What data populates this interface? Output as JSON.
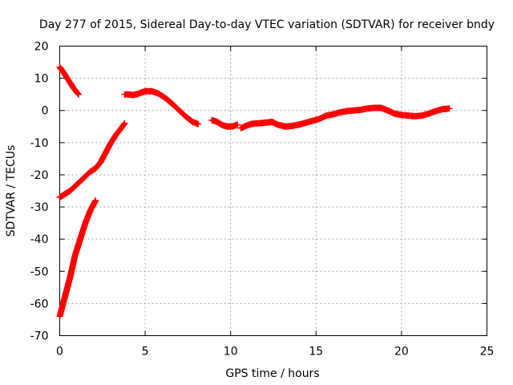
{
  "chart_data": {
    "type": "scatter",
    "title": "Day 277 of 2015, Sidereal Day-to-day VTEC variation (SDTVAR) for receiver bndy",
    "xlabel": "GPS time / hours",
    "ylabel": "SDTVAR / TECUs",
    "xlim": [
      0,
      25
    ],
    "ylim": [
      -70,
      20
    ],
    "xticks": [
      0,
      5,
      10,
      15,
      20,
      25
    ],
    "yticks": [
      -70,
      -60,
      -50,
      -40,
      -30,
      -20,
      -10,
      0,
      10,
      20
    ],
    "grid": true,
    "marker": "+",
    "color": "#ff0000",
    "series": [
      {
        "name": "segment-1",
        "points": [
          [
            0.0,
            13.5
          ],
          [
            0.2,
            12.0
          ],
          [
            0.5,
            9.5
          ],
          [
            0.8,
            7.0
          ],
          [
            1.1,
            5.0
          ]
        ]
      },
      {
        "name": "segment-2",
        "points": [
          [
            0.0,
            -27.0
          ],
          [
            0.3,
            -26.0
          ],
          [
            0.6,
            -25.0
          ],
          [
            0.9,
            -23.5
          ],
          [
            1.2,
            -22.0
          ],
          [
            1.5,
            -20.5
          ],
          [
            1.8,
            -19.0
          ],
          [
            2.1,
            -18.0
          ],
          [
            2.4,
            -16.0
          ],
          [
            2.7,
            -13.0
          ],
          [
            3.0,
            -10.0
          ],
          [
            3.3,
            -7.5
          ],
          [
            3.6,
            -5.5
          ],
          [
            3.8,
            -4.0
          ]
        ]
      },
      {
        "name": "segment-3",
        "points": [
          [
            0.0,
            -64.0
          ],
          [
            0.3,
            -58.0
          ],
          [
            0.6,
            -52.0
          ],
          [
            0.9,
            -45.0
          ],
          [
            1.2,
            -40.0
          ],
          [
            1.5,
            -35.0
          ],
          [
            1.8,
            -31.0
          ],
          [
            2.1,
            -28.0
          ]
        ]
      },
      {
        "name": "segment-4",
        "points": [
          [
            3.8,
            5.0
          ],
          [
            4.0,
            5.0
          ],
          [
            4.3,
            4.8
          ],
          [
            4.6,
            5.2
          ],
          [
            5.0,
            6.0
          ],
          [
            5.4,
            6.0
          ],
          [
            5.8,
            5.2
          ],
          [
            6.2,
            3.8
          ],
          [
            6.6,
            2.0
          ],
          [
            7.0,
            0.0
          ],
          [
            7.4,
            -2.0
          ],
          [
            7.8,
            -3.6
          ],
          [
            8.1,
            -4.2
          ]
        ]
      },
      {
        "name": "segment-5",
        "points": [
          [
            8.9,
            -3.0
          ],
          [
            9.2,
            -3.5
          ],
          [
            9.5,
            -4.5
          ],
          [
            9.8,
            -5.0
          ],
          [
            10.1,
            -5.0
          ],
          [
            10.4,
            -4.4
          ]
        ]
      },
      {
        "name": "segment-6",
        "points": [
          [
            10.6,
            -5.5
          ],
          [
            10.9,
            -4.8
          ],
          [
            11.2,
            -4.2
          ],
          [
            11.6,
            -4.0
          ],
          [
            12.0,
            -3.8
          ],
          [
            12.4,
            -3.6
          ]
        ]
      },
      {
        "name": "segment-7",
        "points": [
          [
            12.4,
            -3.5
          ],
          [
            12.8,
            -4.5
          ],
          [
            13.2,
            -5.0
          ],
          [
            13.6,
            -4.8
          ],
          [
            14.0,
            -4.4
          ],
          [
            14.4,
            -3.8
          ],
          [
            14.8,
            -3.2
          ],
          [
            15.2,
            -2.6
          ],
          [
            15.6,
            -1.6
          ],
          [
            16.0,
            -1.2
          ],
          [
            16.4,
            -0.6
          ],
          [
            16.8,
            -0.2
          ],
          [
            17.2,
            0.0
          ],
          [
            17.6,
            0.2
          ],
          [
            18.0,
            0.6
          ],
          [
            18.4,
            0.8
          ],
          [
            18.8,
            0.8
          ],
          [
            19.2,
            0.0
          ],
          [
            19.6,
            -1.0
          ],
          [
            20.0,
            -1.4
          ],
          [
            20.4,
            -1.6
          ],
          [
            20.8,
            -1.8
          ],
          [
            21.2,
            -1.6
          ],
          [
            21.6,
            -1.0
          ],
          [
            22.0,
            -0.2
          ],
          [
            22.4,
            0.4
          ],
          [
            22.8,
            0.6
          ]
        ]
      }
    ]
  }
}
